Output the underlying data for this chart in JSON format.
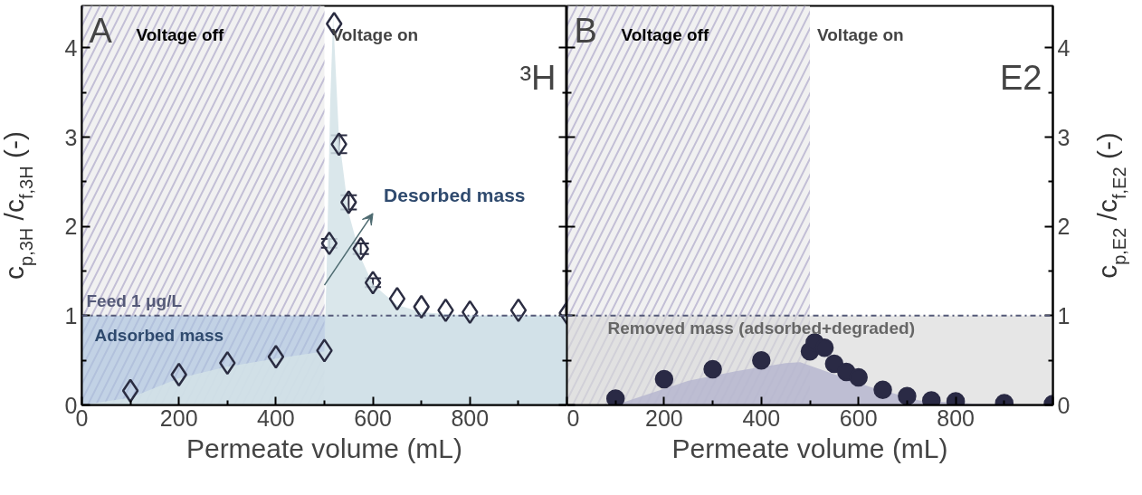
{
  "chart_data": [
    {
      "type": "scatter",
      "xlabel": "Permeate volume (mL)",
      "ylabel": "c$_{p,3H}$ /c$_{f,3H}$ (-)",
      "xlim": [
        0,
        1000
      ],
      "xticks": [
        0,
        200,
        400,
        600,
        800,
        {
          "value": 1000,
          "label": null
        }
      ],
      "ylim": [
        0,
        4.47
      ],
      "yticks": [
        0,
        1,
        2,
        3,
        4
      ],
      "grid": false,
      "series": [
        {
          "type": "area",
          "color": "#d3e3e7",
          "x": [
            0,
            100,
            200,
            300,
            400,
            500,
            505,
            512,
            518,
            530,
            550,
            575,
            600,
            650,
            700,
            800,
            1000
          ],
          "values": [
            0,
            0.08,
            0.3,
            0.43,
            0.52,
            0.6,
            1.6,
            3.4,
            4.35,
            3.0,
            2.15,
            1.65,
            1.35,
            1.12,
            1.04,
            1.0,
            1.0
          ]
        },
        {
          "marker": "diamond",
          "color": "#2b2d42",
          "x": [
            100,
            200,
            300,
            400,
            500,
            510,
            520,
            530,
            550,
            575,
            600,
            650,
            700,
            750,
            800,
            900,
            1000
          ],
          "values": [
            0.16,
            0.34,
            0.47,
            0.54,
            0.61,
            1.81,
            4.27,
            2.92,
            2.27,
            1.75,
            1.37,
            1.19,
            1.1,
            1.06,
            1.04,
            1.06,
            1.03
          ],
          "errors": [
            null,
            null,
            null,
            null,
            null,
            0.05,
            null,
            0.1,
            0.08,
            0.06,
            0.05,
            null,
            null,
            null,
            null,
            null,
            null
          ]
        }
      ],
      "bands": [
        {
          "axis": "x",
          "from": 0,
          "to": 500,
          "label": "Voltage off",
          "color": "#c3bfd6"
        },
        {
          "axis": "y",
          "from": 0,
          "to": 1,
          "label": "Adsorbed mass",
          "color": "#a9c2de"
        }
      ],
      "ref_lines": [
        {
          "axis": "y",
          "value": 1,
          "label": "Feed 1 μg/L",
          "color": "#555a78",
          "line_style": "dashdot"
        }
      ],
      "annotations": [
        "A",
        "³H",
        "Voltage on",
        "Desorbed mass"
      ]
    },
    {
      "type": "scatter",
      "xlabel": "Permeate volume (mL)",
      "y2label": "c$_{p,E2}$ /c$_{f,E2}$ (-)",
      "xlim": [
        0,
        1000
      ],
      "xticks": [
        0,
        200,
        400,
        600,
        800,
        {
          "value": 1000,
          "label": null
        }
      ],
      "y2lim": [
        0,
        4.47
      ],
      "y2ticks": [
        0,
        1,
        2,
        3,
        4
      ],
      "grid": false,
      "series": [
        {
          "type": "area",
          "axis": "y2",
          "color": "#b6b6cf",
          "x": [
            100,
            250,
            350,
            450,
            480,
            625,
            725,
            850,
            950
          ],
          "values": [
            0,
            0.27,
            0.38,
            0.47,
            0.48,
            0.2,
            0.05,
            0.01,
            0.0
          ]
        },
        {
          "axis": "y2",
          "marker": "circle",
          "color": "#2a2a45",
          "x": [
            100,
            200,
            300,
            400,
            500,
            510,
            530,
            550,
            575,
            600,
            650,
            700,
            750,
            800,
            900,
            1000
          ],
          "values": [
            0.07,
            0.29,
            0.4,
            0.5,
            0.6,
            0.7,
            0.64,
            0.46,
            0.37,
            0.31,
            0.17,
            0.1,
            0.05,
            0.04,
            0.02,
            0.01
          ]
        }
      ],
      "bands": [
        {
          "axis": "x",
          "from": 0,
          "to": 500,
          "label": "Voltage off",
          "color": "#c3bfd6"
        },
        {
          "axis": "y2",
          "from": 0,
          "to": 1,
          "label": "Removed mass (adsorbed+degraded)",
          "color": "#d9d9d9"
        }
      ],
      "ref_lines": [
        {
          "axis": "y2",
          "value": 1,
          "color": "#555a78",
          "line_style": "dashdot"
        }
      ],
      "annotations": [
        "B",
        "E2",
        "Voltage on"
      ]
    }
  ]
}
